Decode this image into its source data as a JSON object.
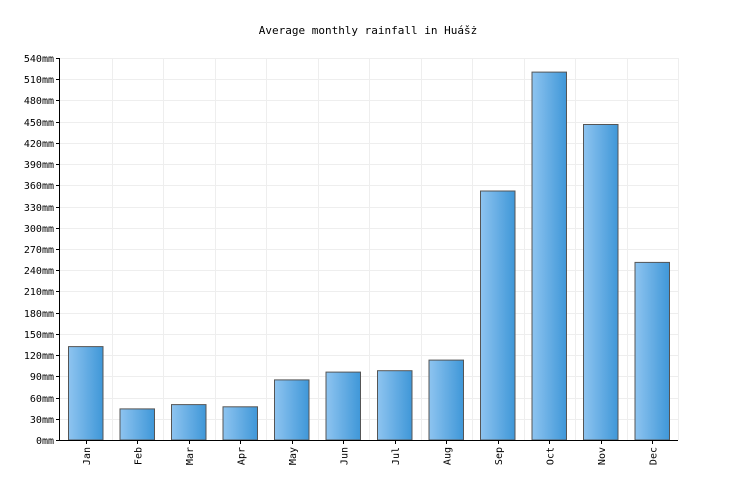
{
  "chart_data": {
    "type": "bar",
    "title": "Average monthly rainfall in Huášż",
    "xlabel": "",
    "ylabel": "",
    "categories": [
      "Jan",
      "Feb",
      "Mar",
      "Apr",
      "May",
      "Jun",
      "Jul",
      "Aug",
      "Sep",
      "Oct",
      "Nov",
      "Dec"
    ],
    "values": [
      132,
      44,
      50,
      47,
      85,
      96,
      98,
      113,
      352,
      520,
      446,
      251
    ],
    "ylim": [
      0,
      540
    ],
    "ytick_step": 30,
    "yticks": [
      "0mm",
      "30mm",
      "60mm",
      "90mm",
      "120mm",
      "150mm",
      "180mm",
      "210mm",
      "240mm",
      "270mm",
      "300mm",
      "330mm",
      "360mm",
      "390mm",
      "420mm",
      "450mm",
      "480mm",
      "510mm",
      "540mm"
    ],
    "grid": true,
    "legend": "none",
    "colors": {
      "bar_light": "#8ec4f0",
      "bar_dark": "#3f97d8",
      "bar_stroke": "#555555",
      "grid": "#eeeeee"
    }
  }
}
